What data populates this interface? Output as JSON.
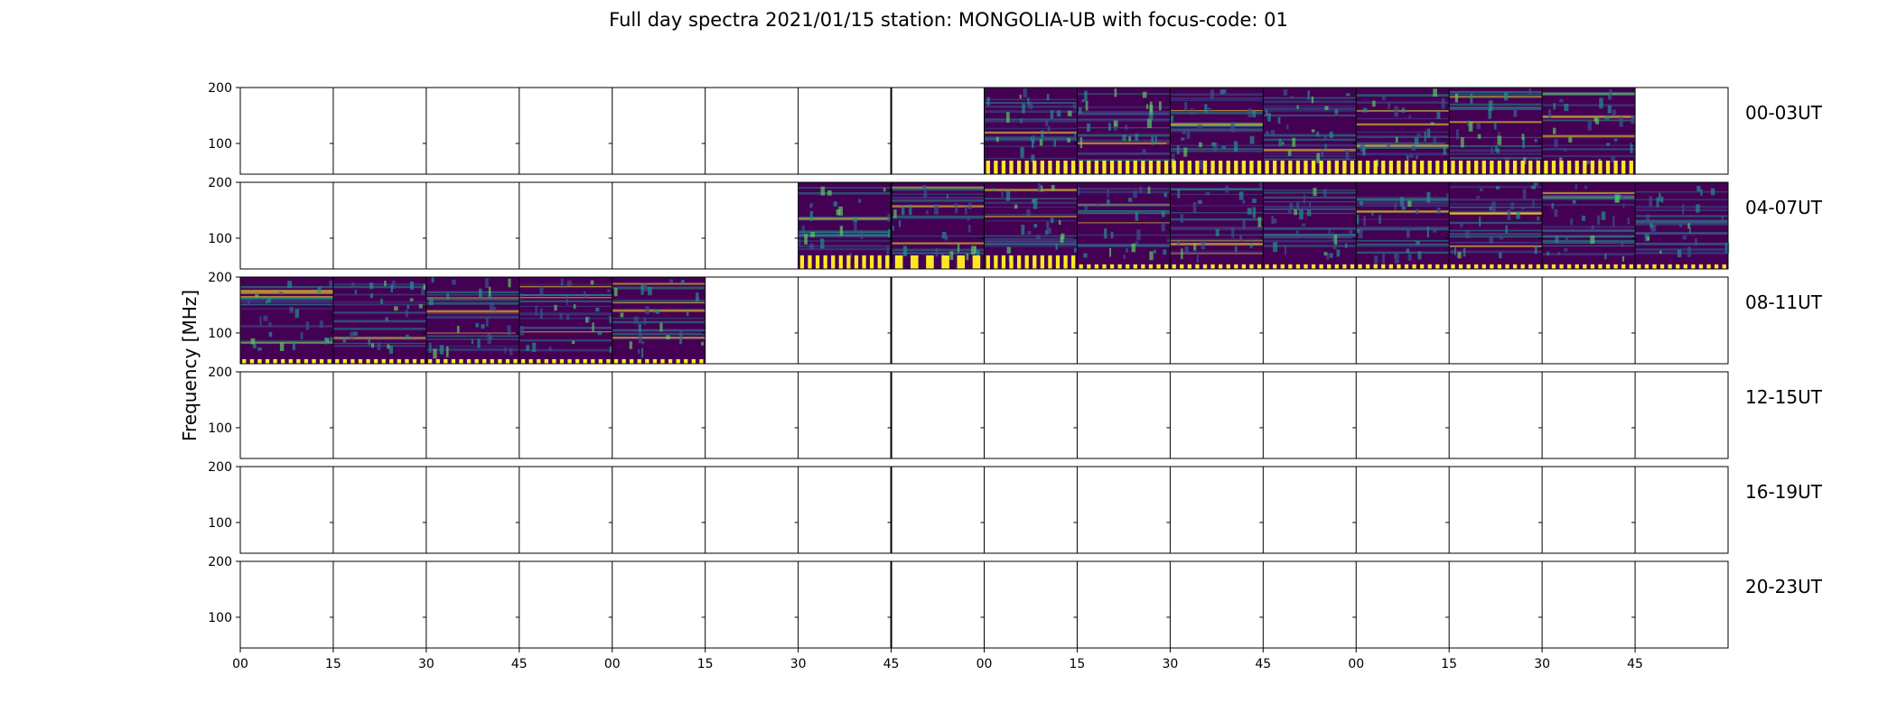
{
  "chart_data": {
    "type": "heatmap",
    "title": "Full day spectra 2021/01/15 station: MONGOLIA-UB with focus-code: 01",
    "ylabel": "Frequency [MHz]",
    "ylim": [
      45,
      200
    ],
    "y_ticks": [
      "100",
      "200"
    ],
    "x_ticks": [
      "00",
      "15",
      "30",
      "45",
      "00",
      "15",
      "30",
      "45",
      "00",
      "15",
      "30",
      "45",
      "00",
      "15",
      "30",
      "45"
    ],
    "columns_per_row": 16,
    "colormap": [
      "#440154",
      "#3b528b",
      "#21918c",
      "#5ec962",
      "#fde725"
    ],
    "rows": [
      {
        "label": "00-03UT",
        "filled_slots": [
          8,
          9,
          10,
          11,
          12,
          13,
          14
        ]
      },
      {
        "label": "04-07UT",
        "filled_slots": [
          6,
          7,
          8,
          9,
          10,
          11,
          12,
          13,
          14,
          15
        ]
      },
      {
        "label": "08-11UT",
        "filled_slots": [
          0,
          1,
          2,
          3,
          4
        ]
      },
      {
        "label": "12-15UT",
        "filled_slots": []
      },
      {
        "label": "16-19UT",
        "filled_slots": []
      },
      {
        "label": "20-23UT",
        "filled_slots": []
      }
    ]
  }
}
